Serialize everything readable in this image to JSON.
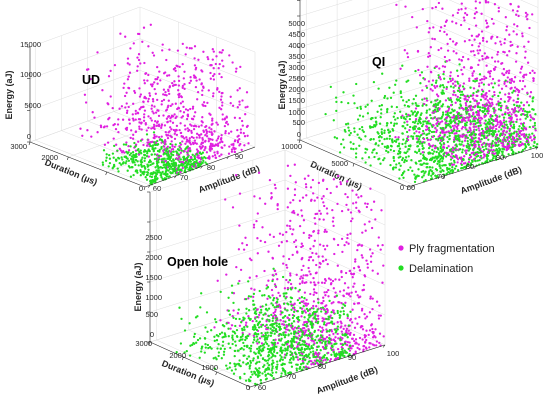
{
  "chart_data": [
    {
      "type": "scatter",
      "title": "UD",
      "xlabel": "Amplitude (dB)",
      "ylabel": "Duration (µs)",
      "zlabel": "Energy (aJ)",
      "xticks": [
        "60",
        "70",
        "80",
        "90"
      ],
      "yticks": [
        "0",
        "1000",
        "2000",
        "3000"
      ],
      "zticks": [
        "0",
        "5000",
        "10000",
        "15000"
      ],
      "xlim": [
        58,
        100
      ],
      "ylim": [
        0,
        3000
      ],
      "zlim": [
        0,
        15000
      ],
      "grid": true,
      "series": [
        {
          "name": "Ply fragmentation",
          "color": "#e020e0",
          "amplitude": [
            68,
            98
          ],
          "duration": [
            0,
            2600
          ],
          "energy": [
            300,
            15000
          ],
          "count": 700,
          "seed": 11
        },
        {
          "name": "Delamination",
          "color": "#22dd22",
          "amplitude": [
            60,
            82
          ],
          "duration": [
            0,
            1400
          ],
          "energy": [
            0,
            2200
          ],
          "count": 500,
          "seed": 12
        }
      ]
    },
    {
      "type": "scatter",
      "title": "QI",
      "xlabel": "Amplitude (dB)",
      "ylabel": "Duration (µs)",
      "zlabel": "Energy (aJ)",
      "xticks": [
        "60",
        "70",
        "80",
        "90",
        "100"
      ],
      "yticks": [
        "0",
        "5000",
        "10000"
      ],
      "zticks": [
        "0",
        "500",
        "1000",
        "1500",
        "2000",
        "2500",
        "3000",
        "3500",
        "4000",
        "4500",
        "5000"
      ],
      "xlim": [
        58,
        100
      ],
      "ylim": [
        0,
        10000
      ],
      "zlim": [
        0,
        5000
      ],
      "grid": true,
      "series": [
        {
          "name": "Ply fragmentation",
          "color": "#e020e0",
          "amplitude": [
            72,
            100
          ],
          "duration": [
            0,
            6000
          ],
          "energy": [
            200,
            5000
          ],
          "count": 900,
          "seed": 21
        },
        {
          "name": "Delamination",
          "color": "#22dd22",
          "amplitude": [
            60,
            100
          ],
          "duration": [
            0,
            9000
          ],
          "energy": [
            0,
            1800
          ],
          "count": 1200,
          "seed": 22
        }
      ]
    },
    {
      "type": "scatter",
      "title": "Open hole",
      "xlabel": "Amplitude (dB)",
      "ylabel": "Duration (µs)",
      "zlabel": "Energy (aJ)",
      "xticks": [
        "60",
        "70",
        "80",
        "90",
        "100"
      ],
      "yticks": [
        "0",
        "1000",
        "2000",
        "3000"
      ],
      "zticks": [
        "0",
        "500",
        "1000",
        "1500",
        "2000",
        "2500"
      ],
      "xlim": [
        58,
        100
      ],
      "ylim": [
        0,
        3000
      ],
      "zlim": [
        0,
        2500
      ],
      "grid": true,
      "series": [
        {
          "name": "Ply fragmentation",
          "color": "#e020e0",
          "amplitude": [
            75,
            100
          ],
          "duration": [
            0,
            2800
          ],
          "energy": [
            0,
            2650
          ],
          "count": 800,
          "seed": 31
        },
        {
          "name": "Delamination",
          "color": "#22dd22",
          "amplitude": [
            58,
            90
          ],
          "duration": [
            0,
            2400
          ],
          "energy": [
            0,
            900
          ],
          "count": 900,
          "seed": 32
        }
      ]
    }
  ],
  "legend": {
    "placement": "right",
    "items": [
      {
        "label": "Ply fragmentation",
        "color": "#e020e0"
      },
      {
        "label": "Delamination",
        "color": "#22dd22"
      }
    ]
  }
}
